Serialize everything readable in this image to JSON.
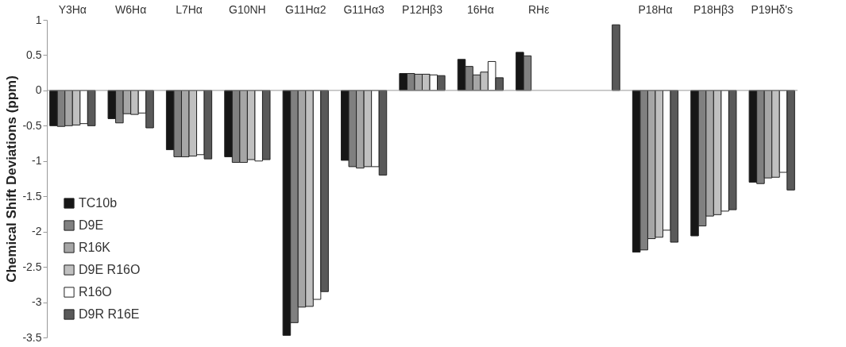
{
  "chart_data": {
    "type": "bar",
    "ylabel": "Chemical Shift Deviations (ppm)",
    "categories": [
      "Y3Hα",
      "W6Hα",
      "L7Hα",
      "G10NH",
      "G11Hα2",
      "G11Hα3",
      "P12Hβ3",
      "16Hα",
      "RHε",
      null,
      "P18Hα",
      "P18Hβ3",
      "P19Hδ's"
    ],
    "series": [
      {
        "name": "TC10b",
        "color": "#161616",
        "values": [
          -0.5,
          -0.4,
          -0.84,
          -0.94,
          -3.47,
          -0.99,
          0.24,
          0.44,
          0.54,
          null,
          -2.29,
          -2.06,
          -1.3
        ]
      },
      {
        "name": "D9E",
        "color": "#808080",
        "values": [
          -0.51,
          -0.46,
          -0.94,
          -1.02,
          -3.29,
          -1.08,
          0.24,
          0.34,
          0.49,
          null,
          -2.26,
          -1.92,
          -1.32
        ]
      },
      {
        "name": "R16K",
        "color": "#a6a6a6",
        "values": [
          -0.5,
          -0.33,
          -0.94,
          -1.02,
          -3.07,
          -1.1,
          0.23,
          0.22,
          null,
          null,
          -2.1,
          -1.78,
          -1.24
        ]
      },
      {
        "name": "D9E R16O",
        "color": "#c0c0c0",
        "values": [
          -0.49,
          -0.34,
          -0.93,
          -0.98,
          -3.06,
          -1.08,
          0.23,
          0.26,
          null,
          null,
          -2.08,
          -1.76,
          -1.23
        ]
      },
      {
        "name": "R16O",
        "color": "#ffffff",
        "values": [
          -0.47,
          -0.32,
          -0.91,
          -1.0,
          -2.96,
          -1.08,
          0.22,
          0.41,
          null,
          null,
          -1.98,
          -1.71,
          -1.16
        ]
      },
      {
        "name": "D9R R16E",
        "color": "#595959",
        "values": [
          -0.5,
          -0.53,
          -0.97,
          -0.98,
          -2.85,
          -1.2,
          0.21,
          0.18,
          null,
          0.93,
          -2.15,
          -1.69,
          -1.41
        ]
      }
    ],
    "ylim": [
      -3.5,
      1
    ],
    "yticks": [
      -3.5,
      -3,
      -2.5,
      -2,
      -1.5,
      -1,
      -0.5,
      0,
      0.5,
      1
    ],
    "ref_lines": [
      {
        "axis": "y",
        "value": 0,
        "color": "#999999"
      }
    ],
    "grid": false,
    "legend": "bottom left"
  }
}
